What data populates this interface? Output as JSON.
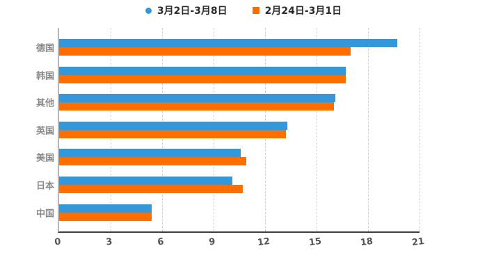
{
  "legend": {
    "items": [
      {
        "series_index": 0,
        "marker": "circle"
      },
      {
        "series_index": 1,
        "marker": "square"
      }
    ]
  },
  "chart_data": {
    "type": "bar",
    "orientation": "horizontal",
    "title": "",
    "xlabel": "",
    "ylabel": "",
    "categories": [
      "德国",
      "韩国",
      "其他",
      "英国",
      "美国",
      "日本",
      "中国"
    ],
    "series": [
      {
        "name": "3月2日-3月8日",
        "color": "#3398DB",
        "values": [
          19.7,
          16.7,
          16.1,
          13.3,
          10.6,
          10.1,
          5.4
        ]
      },
      {
        "name": "2月24日-3月1日",
        "color": "#FF6E00",
        "values": [
          17.0,
          16.7,
          16.0,
          13.2,
          10.9,
          10.7,
          5.4
        ]
      }
    ],
    "xlim": [
      0,
      21
    ],
    "xticks": [
      0,
      3,
      6,
      9,
      12,
      15,
      18,
      21
    ],
    "grid": "vertical-dashed",
    "legend_position": "top-center",
    "colors": {
      "grid_line": "#cfcfcf",
      "x_axis_line": "#3d3d3d",
      "y_axis_line": "#b5b5b5",
      "category_label": "#8a8a8a",
      "tick_label": "#555555",
      "legend_text": "#2b2b2b",
      "background": "#ffffff"
    }
  }
}
